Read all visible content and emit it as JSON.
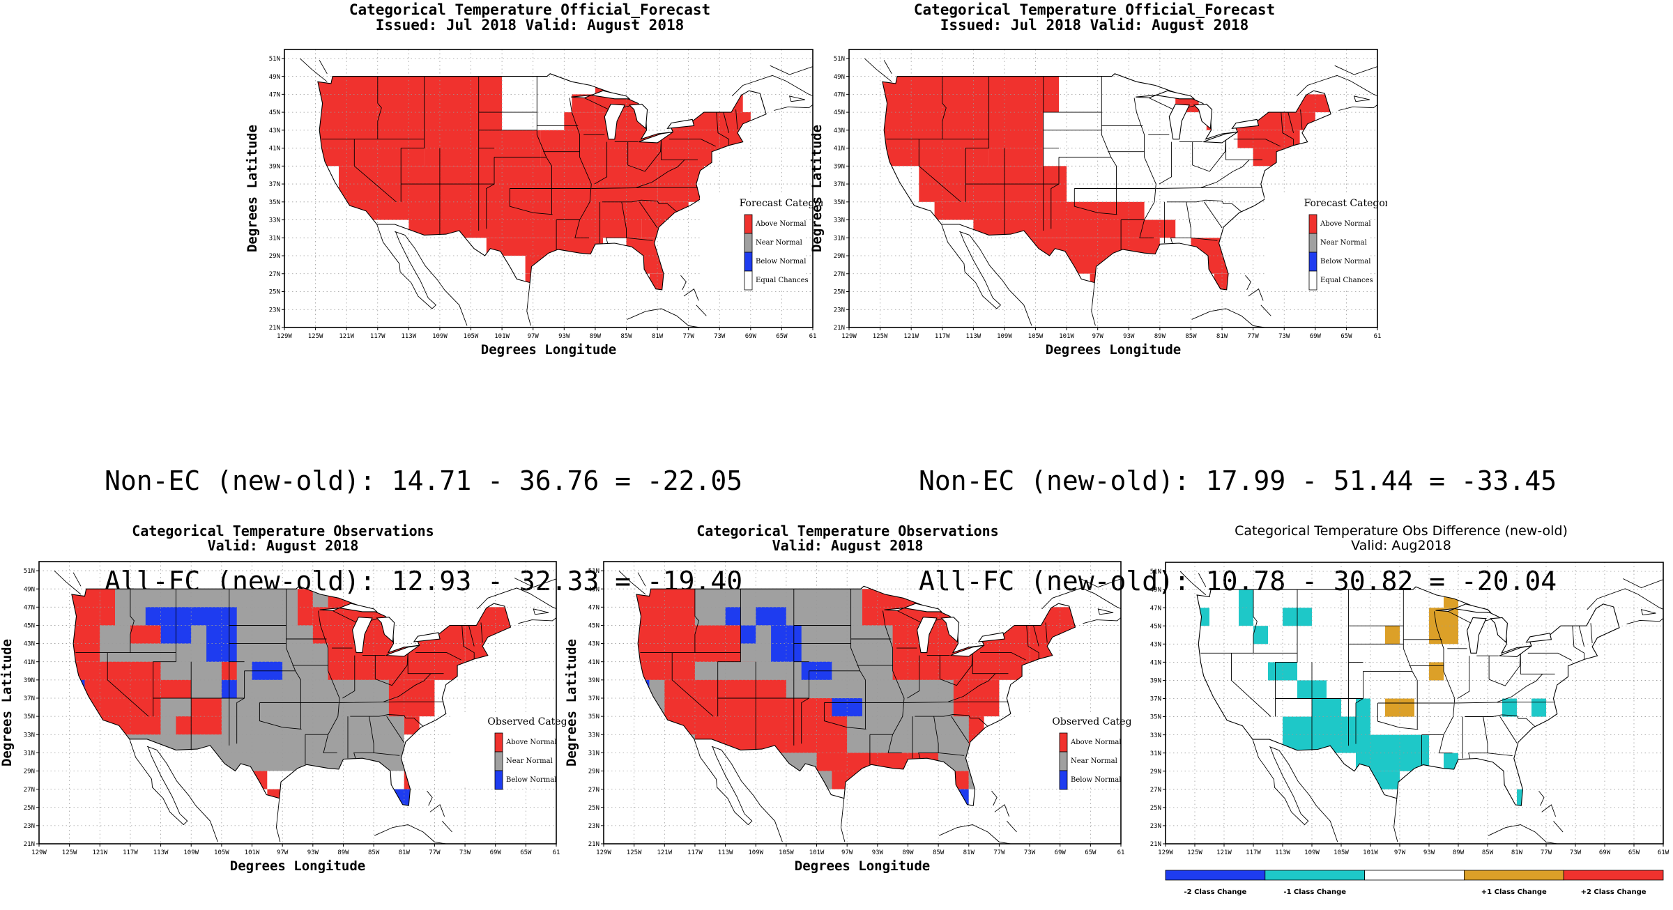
{
  "forecast_title_line1": "Categorical Temperature Official_Forecast",
  "forecast_title_line2": "Issued: Jul 2018 Valid: August 2018",
  "observations_title_line1": "Categorical Temperature Observations",
  "observations_title_line2": "Valid: August 2018",
  "difference_title_line1": "Categorical Temperature Obs Difference (new-old)",
  "difference_title_line2": "Valid: Aug2018",
  "axis_xlabel": "Degrees Longitude",
  "axis_ylabel": "Degrees Latitude",
  "lon_ticks": [
    "129W",
    "125W",
    "121W",
    "117W",
    "113W",
    "109W",
    "105W",
    "101W",
    "97W",
    "93W",
    "89W",
    "85W",
    "81W",
    "77W",
    "73W",
    "69W",
    "65W",
    "61"
  ],
  "diff_lon_ticks": [
    "129W",
    "125W",
    "121W",
    "117W",
    "113W",
    "109W",
    "105W",
    "101W",
    "97W",
    "93W",
    "89W",
    "85W",
    "81W",
    "77W",
    "73W",
    "69W",
    "65W",
    "61W"
  ],
  "lat_ticks": [
    "51N",
    "49N",
    "47N",
    "45N",
    "43N",
    "41N",
    "39N",
    "37N",
    "35N",
    "33N",
    "31N",
    "29N",
    "27N",
    "25N",
    "23N",
    "21N"
  ],
  "forecast_legend": {
    "title": "Forecast Category",
    "items": [
      {
        "label": "Above Normal",
        "color": "#f0322e"
      },
      {
        "label": "Near Normal",
        "color": "#a0a0a0"
      },
      {
        "label": "Below Normal",
        "color": "#1e3cf0"
      },
      {
        "label": "Equal Chances",
        "color": "#ffffff"
      }
    ]
  },
  "observed_legend": {
    "title": "Observed Category",
    "items": [
      {
        "label": "Above Normal",
        "color": "#f0322e"
      },
      {
        "label": "Near Normal",
        "color": "#a0a0a0"
      },
      {
        "label": "Below Normal",
        "color": "#1e3cf0"
      }
    ]
  },
  "difference_legend": [
    {
      "label": "-2 Class Change",
      "color": "#1e3cf0"
    },
    {
      "label": "-1 Class Change",
      "color": "#1ec8c8"
    },
    {
      "label": "",
      "color": "#ffffff"
    },
    {
      "label": "+1 Class Change",
      "color": "#dca028"
    },
    {
      "label": "+2 Class Change",
      "color": "#f0322e"
    }
  ],
  "stats_left": {
    "line1": "Non-EC (new-old): 14.71 - 36.76 = -22.05",
    "line2": "All-FC (new-old): 12.93 - 32.33 = -19.40"
  },
  "stats_right": {
    "line1": "Non-EC (new-old): 17.99 - 51.44 = -33.45",
    "line2": "All-FC (new-old): 10.78 - 30.82 = -20.04"
  }
}
